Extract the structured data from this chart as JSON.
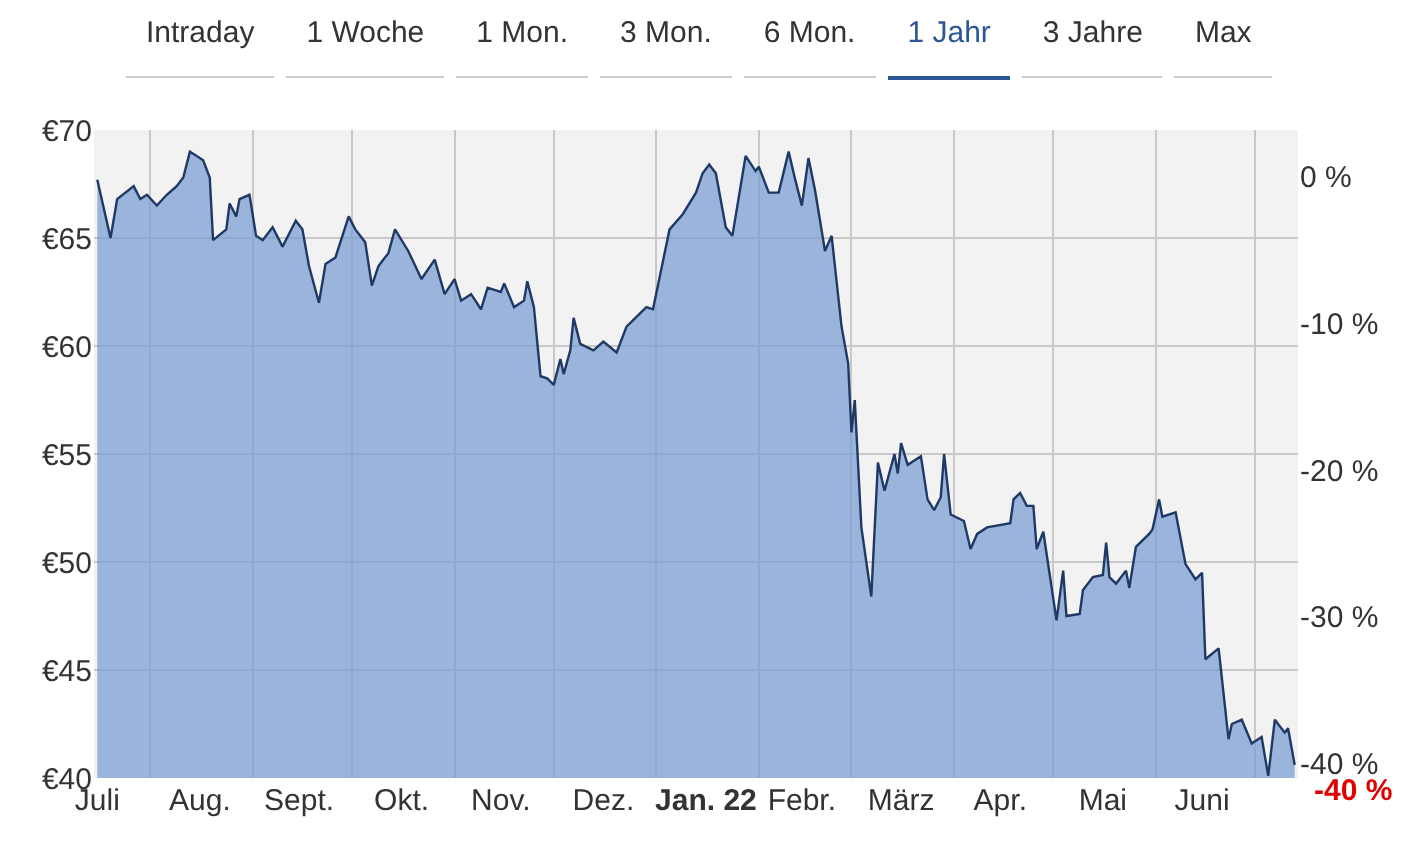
{
  "chart_data": {
    "type": "area",
    "annotations": [
      "Intraday",
      "1 Woche",
      "1 Mon.",
      "3 Mon.",
      "6 Mon.",
      "1 Jahr",
      "3 Jahre",
      "Max",
      "-40 %"
    ],
    "x": [
      "2021-07-16",
      "2021-07-20",
      "2021-07-22",
      "2021-07-27",
      "2021-07-29",
      "2021-07-31",
      "2021-08-03",
      "2021-08-06",
      "2021-08-09",
      "2021-08-11",
      "2021-08-13",
      "2021-08-17",
      "2021-08-19",
      "2021-08-20",
      "2021-08-24",
      "2021-08-25",
      "2021-08-27",
      "2021-08-28",
      "2021-08-31",
      "2021-09-02",
      "2021-09-04",
      "2021-09-07",
      "2021-09-10",
      "2021-09-14",
      "2021-09-16",
      "2021-09-18",
      "2021-09-21",
      "2021-09-23",
      "2021-09-26",
      "2021-09-30",
      "2021-10-02",
      "2021-10-05",
      "2021-10-07",
      "2021-10-09",
      "2021-10-12",
      "2021-10-14",
      "2021-10-18",
      "2021-10-22",
      "2021-10-26",
      "2021-10-29",
      "2021-11-01",
      "2021-11-03",
      "2021-11-06",
      "2021-11-09",
      "2021-11-11",
      "2021-11-15",
      "2021-11-16",
      "2021-11-19",
      "2021-11-22",
      "2021-11-23",
      "2021-11-25",
      "2021-11-27",
      "2021-11-29",
      "2021-12-01",
      "2021-12-03",
      "2021-12-04",
      "2021-12-06",
      "2021-12-07",
      "2021-12-09",
      "2021-12-13",
      "2021-12-16",
      "2021-12-20",
      "2021-12-23",
      "2021-12-29",
      "2021-12-31",
      "2022-01-05",
      "2022-01-09",
      "2022-01-13",
      "2022-01-15",
      "2022-01-17",
      "2022-01-19",
      "2022-01-22",
      "2022-01-24",
      "2022-01-28",
      "2022-01-31",
      "2022-02-01",
      "2022-02-04",
      "2022-02-07",
      "2022-02-10",
      "2022-02-12",
      "2022-02-14",
      "2022-02-16",
      "2022-02-18",
      "2022-02-21",
      "2022-02-23",
      "2022-02-26",
      "2022-02-28",
      "2022-03-01",
      "2022-03-02",
      "2022-03-04",
      "2022-03-07",
      "2022-03-09",
      "2022-03-11",
      "2022-03-14",
      "2022-03-15",
      "2022-03-16",
      "2022-03-18",
      "2022-03-22",
      "2022-03-24",
      "2022-03-26",
      "2022-03-28",
      "2022-03-29",
      "2022-03-31",
      "2022-04-04",
      "2022-04-06",
      "2022-04-08",
      "2022-04-11",
      "2022-04-18",
      "2022-04-19",
      "2022-04-21",
      "2022-04-23",
      "2022-04-25",
      "2022-04-26",
      "2022-04-28",
      "2022-05-02",
      "2022-05-04",
      "2022-05-05",
      "2022-05-09",
      "2022-05-10",
      "2022-05-13",
      "2022-05-16",
      "2022-05-17",
      "2022-05-18",
      "2022-05-20",
      "2022-05-23",
      "2022-05-24",
      "2022-05-26",
      "2022-05-30",
      "2022-05-31",
      "2022-06-02",
      "2022-06-03",
      "2022-06-07",
      "2022-06-10",
      "2022-06-13",
      "2022-06-15",
      "2022-06-16",
      "2022-06-20",
      "2022-06-23",
      "2022-06-24",
      "2022-06-27",
      "2022-06-30",
      "2022-07-03",
      "2022-07-05",
      "2022-07-07",
      "2022-07-10",
      "2022-07-11",
      "2022-07-13"
    ],
    "series": [
      {
        "color": "#1f3864",
        "values": [
          67.7,
          65.0,
          66.8,
          67.4,
          66.8,
          67.0,
          66.5,
          67.0,
          67.4,
          67.8,
          69.0,
          68.6,
          67.8,
          64.9,
          65.4,
          66.6,
          66.0,
          66.8,
          67.0,
          65.1,
          64.9,
          65.5,
          64.6,
          65.8,
          65.4,
          63.7,
          62.0,
          63.8,
          64.1,
          66.0,
          65.4,
          64.8,
          62.8,
          63.7,
          64.3,
          65.4,
          64.4,
          63.1,
          64.0,
          62.4,
          63.1,
          62.1,
          62.4,
          61.7,
          62.7,
          62.5,
          62.9,
          61.8,
          62.1,
          63.0,
          61.8,
          58.6,
          58.5,
          58.2,
          59.4,
          58.7,
          59.8,
          61.3,
          60.1,
          59.8,
          60.2,
          59.7,
          60.9,
          61.8,
          61.7,
          65.4,
          66.1,
          67.1,
          68.0,
          68.4,
          68.0,
          65.5,
          65.1,
          68.8,
          68.1,
          68.3,
          67.1,
          67.1,
          69.0,
          67.7,
          66.5,
          68.7,
          67.2,
          64.4,
          65.1,
          60.9,
          59.2,
          56.0,
          57.5,
          51.6,
          48.4,
          54.6,
          53.3,
          55.0,
          54.1,
          55.5,
          54.5,
          54.9,
          52.9,
          52.4,
          53.0,
          55.0,
          52.2,
          51.9,
          50.6,
          51.3,
          51.6,
          51.8,
          52.9,
          53.2,
          52.6,
          52.6,
          50.6,
          51.4,
          47.3,
          49.6,
          47.5,
          47.6,
          48.7,
          49.3,
          49.4,
          50.9,
          49.3,
          49.0,
          49.6,
          48.8,
          50.7,
          51.3,
          51.5,
          52.9,
          52.1,
          52.3,
          49.9,
          49.2,
          49.5,
          45.5,
          46.0,
          41.8,
          42.5,
          42.7,
          41.6,
          41.9,
          40.1,
          42.7,
          42.1,
          42.3,
          40.6
        ]
      }
    ],
    "xlim": [
      "2021-07-15",
      "2022-07-14"
    ],
    "xticks": [
      {
        "value": "2021-07-16",
        "label": "Juli"
      },
      {
        "value": "2021-08-16",
        "label": "Aug."
      },
      {
        "value": "2021-09-15",
        "label": "Sept."
      },
      {
        "value": "2021-10-16",
        "label": "Okt."
      },
      {
        "value": "2021-11-15",
        "label": "Nov."
      },
      {
        "value": "2021-12-16",
        "label": "Dez."
      },
      {
        "value": "2022-01-16",
        "label": "Jan. 22"
      },
      {
        "value": "2022-02-14",
        "label": "Febr."
      },
      {
        "value": "2022-03-16",
        "label": "März"
      },
      {
        "value": "2022-04-15",
        "label": "Apr."
      },
      {
        "value": "2022-05-16",
        "label": "Mai"
      },
      {
        "value": "2022-06-15",
        "label": "Juni"
      }
    ],
    "ylim": [
      40,
      70
    ],
    "yticks": [
      {
        "value": 40,
        "label": "€40"
      },
      {
        "value": 45,
        "label": "€45"
      },
      {
        "value": 50,
        "label": "€50"
      },
      {
        "value": 55,
        "label": "€55"
      },
      {
        "value": 60,
        "label": "€60"
      },
      {
        "value": 65,
        "label": "€65"
      },
      {
        "value": 70,
        "label": "€70"
      }
    ],
    "y2lim": [
      -41.0,
      3.2
    ],
    "y2ticks": [
      {
        "value": 0,
        "label": "0 %"
      },
      {
        "value": -10,
        "label": "-10 %"
      },
      {
        "value": -20,
        "label": "-20 %"
      },
      {
        "value": -30,
        "label": "-30 %"
      },
      {
        "value": -40,
        "label": "-40 %"
      }
    ],
    "grid": true
  }
}
